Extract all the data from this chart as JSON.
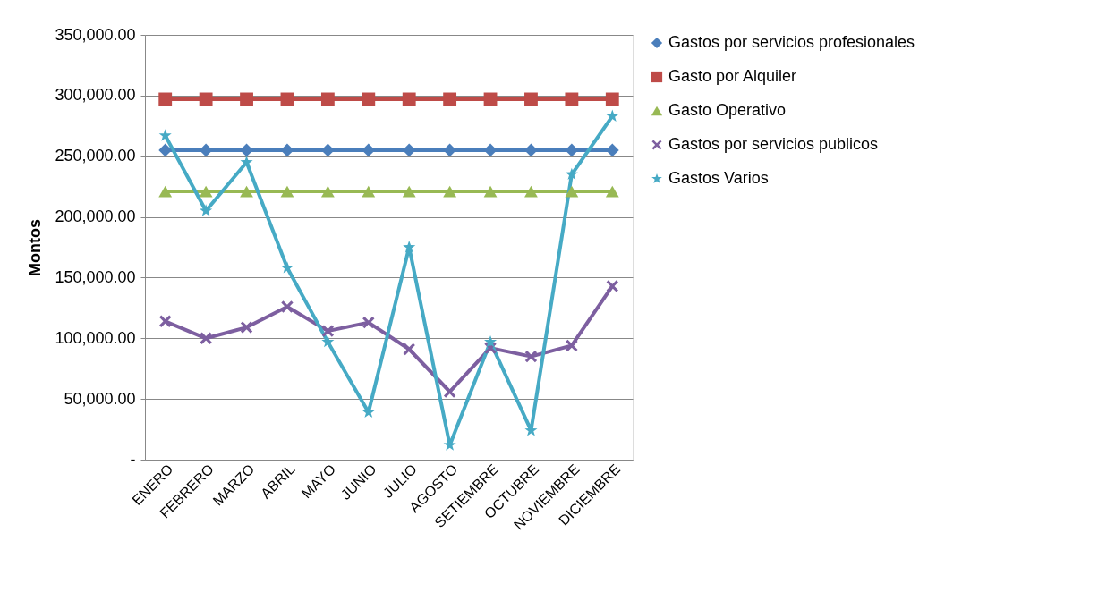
{
  "chart_data": {
    "type": "line",
    "ylabel": "Montos",
    "categories": [
      "ENERO",
      "FEBRERO",
      "MARZO",
      "ABRIL",
      "MAYO",
      "JUNIO",
      "JULIO",
      "AGOSTO",
      "SETIEMBRE",
      "OCTUBRE",
      "NOVIEMBRE",
      "DICIEMBRE"
    ],
    "series": [
      {
        "name": "Gastos por servicios profesionales",
        "color": "#4a7ebb",
        "marker": "diamond",
        "values": [
          255000,
          255000,
          255000,
          255000,
          255000,
          255000,
          255000,
          255000,
          255000,
          255000,
          255000,
          255000
        ]
      },
      {
        "name": "Gasto por Alquiler",
        "color": "#be4b48",
        "marker": "square",
        "values": [
          297000,
          297000,
          297000,
          297000,
          297000,
          297000,
          297000,
          297000,
          297000,
          297000,
          297000,
          297000
        ]
      },
      {
        "name": "Gasto Operativo",
        "color": "#98b954",
        "marker": "triangle",
        "values": [
          221000,
          221000,
          221000,
          221000,
          221000,
          221000,
          221000,
          221000,
          221000,
          221000,
          221000,
          221000
        ]
      },
      {
        "name": "Gastos por servicios publicos",
        "color": "#7d5fa0",
        "marker": "cross",
        "values": [
          114000,
          100000,
          109000,
          126000,
          106000,
          113000,
          91000,
          56000,
          92000,
          85000,
          94000,
          143000
        ]
      },
      {
        "name": "Gastos Varios",
        "color": "#46aac5",
        "marker": "star",
        "values": [
          267000,
          205000,
          245000,
          158000,
          97000,
          39000,
          175000,
          12000,
          97000,
          24000,
          235000,
          283000
        ]
      }
    ],
    "ylim": [
      0,
      350000
    ],
    "yticks": [
      {
        "value": 0,
        "label": "-"
      },
      {
        "value": 50000,
        "label": "50,000.00"
      },
      {
        "value": 100000,
        "label": "100,000.00"
      },
      {
        "value": 150000,
        "label": "150,000.00"
      },
      {
        "value": 200000,
        "label": "200,000.00"
      },
      {
        "value": 250000,
        "label": "250,000.00"
      },
      {
        "value": 300000,
        "label": "300,000.00"
      },
      {
        "value": 350000,
        "label": "350,000.00"
      }
    ],
    "grid": "y",
    "legend": "right",
    "line_style": "solid"
  }
}
